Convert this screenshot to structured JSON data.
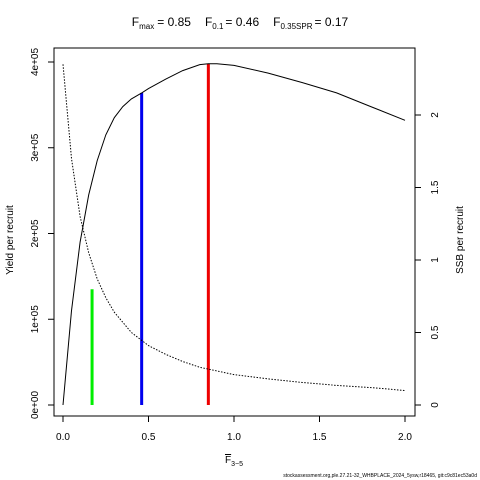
{
  "chart_data": {
    "type": "line",
    "title_parts": {
      "fmax": {
        "base": "F",
        "sub": "max",
        "value": "= 0.85"
      },
      "f01": {
        "base": "F",
        "sub": "0.1",
        "value": "= 0.46"
      },
      "fspr": {
        "base": "F",
        "sub": "0.35SPR",
        "value": "= 0.17"
      }
    },
    "xlabel": {
      "base": "F",
      "sub": "3−5"
    },
    "ylabel_left": "Yield per recruit",
    "ylabel_right": "SSB per recruit",
    "xlim": [
      0,
      2
    ],
    "ylim_left": [
      0,
      400000
    ],
    "ylim_right": [
      0,
      2.35
    ],
    "x_ticks": [
      {
        "value": 0,
        "label": "0.0"
      },
      {
        "value": 0.5,
        "label": "0.5"
      },
      {
        "value": 1,
        "label": "1.0"
      },
      {
        "value": 1.5,
        "label": "1.5"
      },
      {
        "value": 2,
        "label": "2.0"
      }
    ],
    "y_left_ticks": [
      {
        "value": 0,
        "label": "0e+00"
      },
      {
        "value": 100000,
        "label": "1e+05"
      },
      {
        "value": 200000,
        "label": "2e+05"
      },
      {
        "value": 300000,
        "label": "3e+05"
      },
      {
        "value": 400000,
        "label": "4e+05"
      }
    ],
    "y_right_ticks": [
      {
        "value": 0,
        "label": "0"
      },
      {
        "value": 0.5,
        "label": "0.5"
      },
      {
        "value": 1,
        "label": "1"
      },
      {
        "value": 1.5,
        "label": "1.5"
      },
      {
        "value": 2,
        "label": "2"
      }
    ],
    "series": [
      {
        "style": "solid",
        "axis": "left",
        "x": [
          0,
          0.05,
          0.1,
          0.15,
          0.2,
          0.25,
          0.3,
          0.35,
          0.4,
          0.46,
          0.5,
          0.6,
          0.7,
          0.8,
          0.85,
          0.9,
          1.0,
          1.2,
          1.4,
          1.6,
          1.8,
          2.0
        ],
        "y": [
          0,
          110000,
          190000,
          245000,
          285000,
          315000,
          335000,
          348000,
          357000,
          364000,
          369000,
          380000,
          390000,
          397000,
          398000,
          398000,
          396000,
          387000,
          376000,
          364000,
          348000,
          332000
        ]
      },
      {
        "style": "dotted",
        "axis": "right",
        "x": [
          0,
          0.05,
          0.1,
          0.15,
          0.2,
          0.25,
          0.3,
          0.4,
          0.5,
          0.6,
          0.7,
          0.8,
          1.0,
          1.2,
          1.4,
          1.6,
          1.8,
          2.0
        ],
        "y": [
          2.35,
          1.7,
          1.3,
          1.05,
          0.87,
          0.74,
          0.64,
          0.5,
          0.41,
          0.35,
          0.3,
          0.26,
          0.21,
          0.18,
          0.155,
          0.135,
          0.12,
          0.1
        ]
      }
    ],
    "reference_lines": [
      {
        "x": 0.17,
        "y_top": 135000,
        "color": "#00ee00"
      },
      {
        "x": 0.46,
        "y_top": 364000,
        "color": "#0000ee"
      },
      {
        "x": 0.85,
        "y_top": 398000,
        "color": "#ee0000"
      }
    ]
  },
  "footer": "stockassessment.org,ple.27.21-32_WHBPLACE_2024_5ysw,r18465, git:c9c81ec53a0d"
}
